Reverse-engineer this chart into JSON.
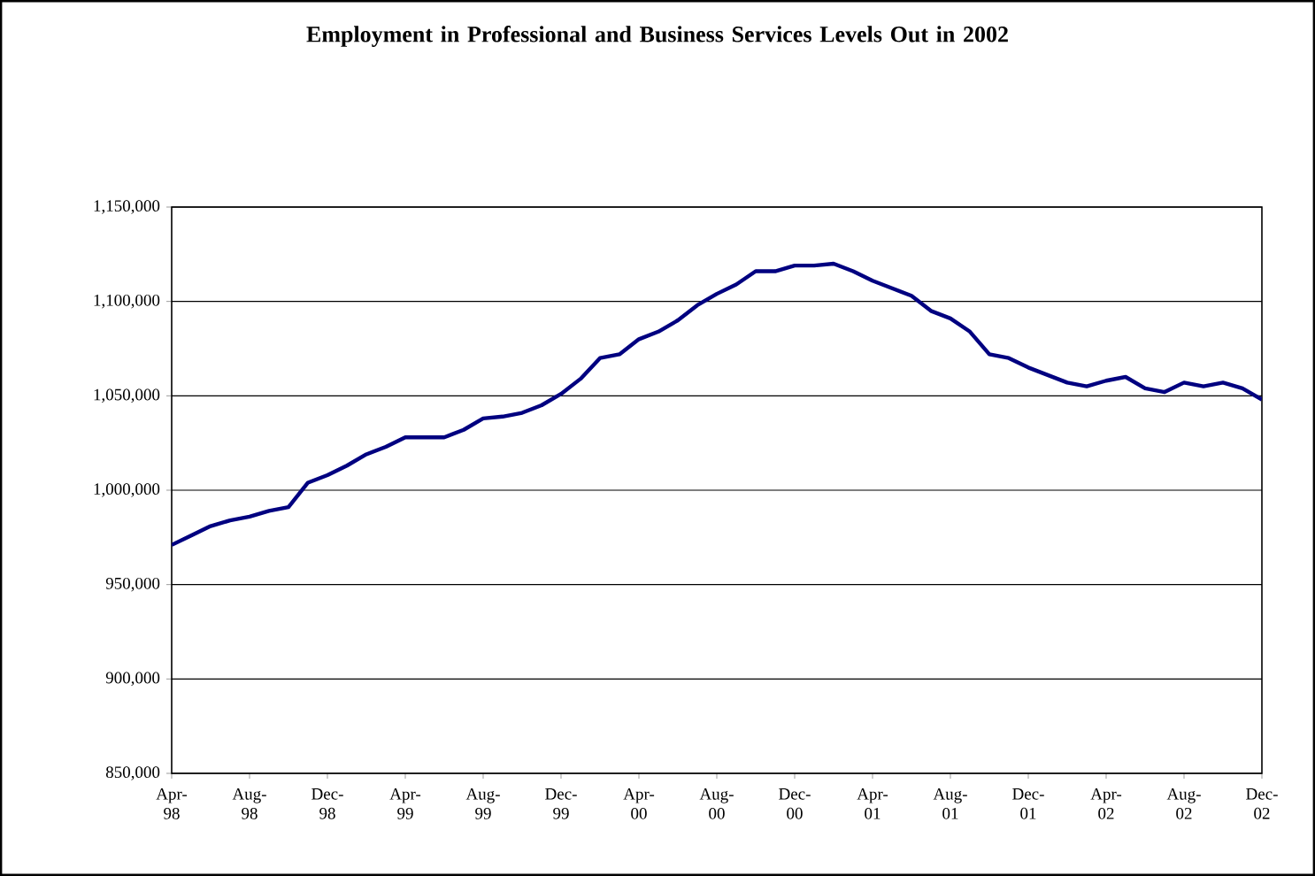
{
  "chart_data": {
    "type": "line",
    "title": "Employment in Professional and Business Services Levels Out in 2002",
    "x": [
      "1998-04",
      "1998-05",
      "1998-06",
      "1998-07",
      "1998-08",
      "1998-09",
      "1998-10",
      "1998-11",
      "1998-12",
      "1999-01",
      "1999-02",
      "1999-03",
      "1999-04",
      "1999-05",
      "1999-06",
      "1999-07",
      "1999-08",
      "1999-09",
      "1999-10",
      "1999-11",
      "1999-12",
      "2000-01",
      "2000-02",
      "2000-03",
      "2000-04",
      "2000-05",
      "2000-06",
      "2000-07",
      "2000-08",
      "2000-09",
      "2000-10",
      "2000-11",
      "2000-12",
      "2001-01",
      "2001-02",
      "2001-03",
      "2001-04",
      "2001-05",
      "2001-06",
      "2001-07",
      "2001-08",
      "2001-09",
      "2001-10",
      "2001-11",
      "2001-12",
      "2002-01",
      "2002-02",
      "2002-03",
      "2002-04",
      "2002-05",
      "2002-06",
      "2002-07",
      "2002-08",
      "2002-09",
      "2002-10",
      "2002-11",
      "2002-12"
    ],
    "series": [
      {
        "color": "#000080",
        "values": [
          971000,
          976000,
          981000,
          984000,
          986000,
          989000,
          991000,
          1004000,
          1008000,
          1013000,
          1019000,
          1023000,
          1028000,
          1028000,
          1028000,
          1032000,
          1038000,
          1039000,
          1041000,
          1045000,
          1051000,
          1059000,
          1070000,
          1072000,
          1080000,
          1084000,
          1090000,
          1098000,
          1104000,
          1109000,
          1116000,
          1116000,
          1119000,
          1119000,
          1120000,
          1116000,
          1111000,
          1107000,
          1103000,
          1095000,
          1091000,
          1084000,
          1072000,
          1070000,
          1065000,
          1061000,
          1057000,
          1055000,
          1058000,
          1060000,
          1054000,
          1052000,
          1057000,
          1055000,
          1057000,
          1054000,
          1048000
        ]
      }
    ],
    "xlim": [
      "1998-04",
      "2002-12"
    ],
    "xticks": [
      {
        "value": "1998-04",
        "label": "Apr-98"
      },
      {
        "value": "1998-08",
        "label": "Aug-98"
      },
      {
        "value": "1998-12",
        "label": "Dec-98"
      },
      {
        "value": "1999-04",
        "label": "Apr-99"
      },
      {
        "value": "1999-08",
        "label": "Aug-99"
      },
      {
        "value": "1999-12",
        "label": "Dec-99"
      },
      {
        "value": "2000-04",
        "label": "Apr-00"
      },
      {
        "value": "2000-08",
        "label": "Aug-00"
      },
      {
        "value": "2000-12",
        "label": "Dec-00"
      },
      {
        "value": "2001-04",
        "label": "Apr-01"
      },
      {
        "value": "2001-08",
        "label": "Aug-01"
      },
      {
        "value": "2001-12",
        "label": "Dec-01"
      },
      {
        "value": "2002-04",
        "label": "Apr-02"
      },
      {
        "value": "2002-08",
        "label": "Aug-02"
      },
      {
        "value": "2002-12",
        "label": "Dec-02"
      }
    ],
    "ylim": [
      850000,
      1150000
    ],
    "yticks": [
      {
        "value": 850000,
        "label": "850,000"
      },
      {
        "value": 900000,
        "label": "900,000"
      },
      {
        "value": 950000,
        "label": "950,000"
      },
      {
        "value": 1000000,
        "label": "1,000,000"
      },
      {
        "value": 1050000,
        "label": "1,050,000"
      },
      {
        "value": 1100000,
        "label": "1,100,000"
      },
      {
        "value": 1150000,
        "label": "1,150,000"
      }
    ],
    "grid": "y",
    "marker": "none",
    "line_style": "solid"
  }
}
